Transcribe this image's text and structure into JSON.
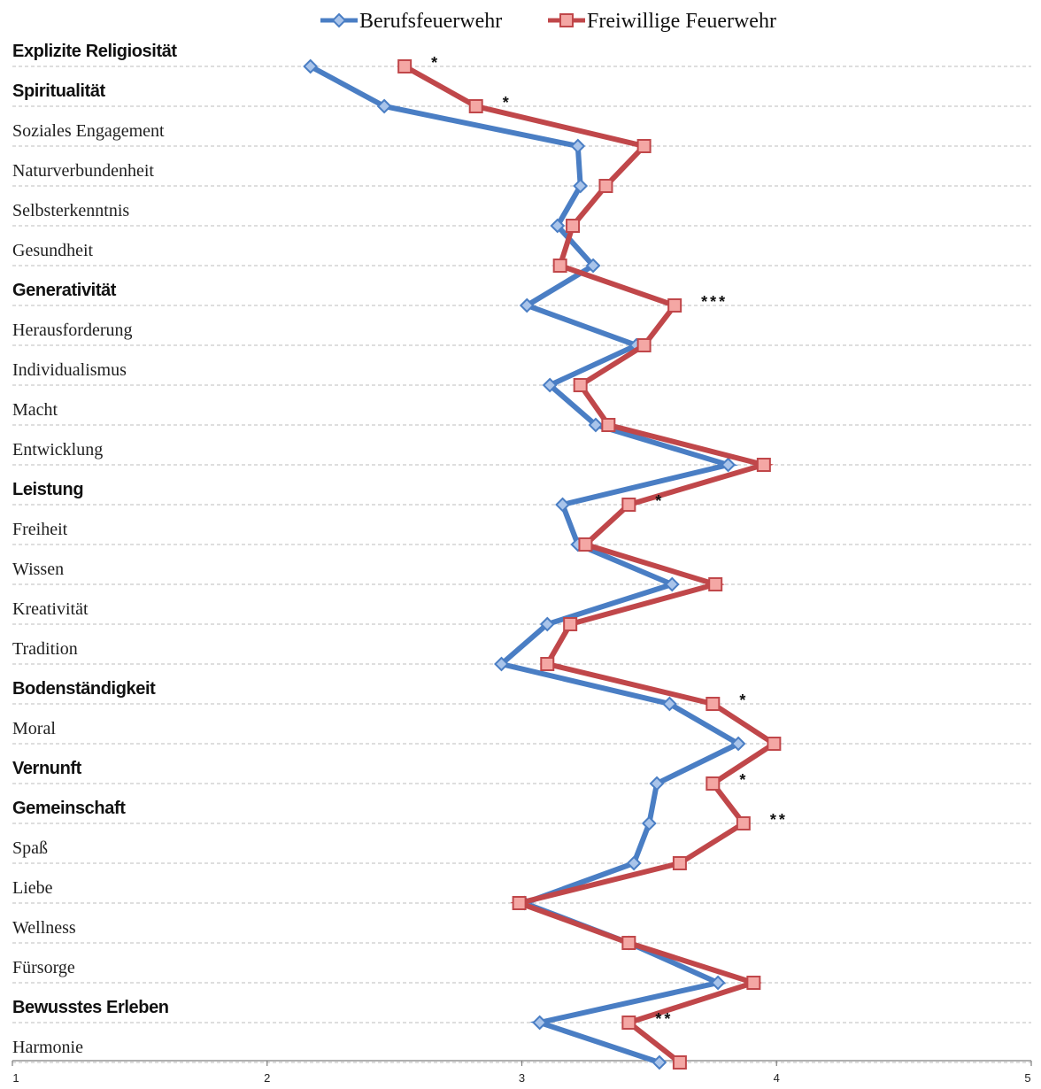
{
  "chart_data": {
    "type": "line",
    "orientation": "horizontal",
    "legend_position": "top",
    "xlim": [
      1,
      5
    ],
    "x_ticks": [
      "1",
      "2",
      "3",
      "4",
      "5"
    ],
    "gridlines": "dashed-horizontal",
    "categories": [
      {
        "label": "Explizite Religiosität",
        "style": "bold-sans"
      },
      {
        "label": "Spiritualität",
        "style": "bold-sans"
      },
      {
        "label": "Soziales Engagement",
        "style": "serif"
      },
      {
        "label": "Naturverbundenheit",
        "style": "serif"
      },
      {
        "label": "Selbsterkenntnis",
        "style": "serif"
      },
      {
        "label": "Gesundheit",
        "style": "serif"
      },
      {
        "label": "Generativität",
        "style": "bold-sans"
      },
      {
        "label": "Herausforderung",
        "style": "serif"
      },
      {
        "label": "Individualismus",
        "style": "serif"
      },
      {
        "label": "Macht",
        "style": "serif"
      },
      {
        "label": "Entwicklung",
        "style": "serif"
      },
      {
        "label": "Leistung",
        "style": "bold-sans"
      },
      {
        "label": "Freiheit",
        "style": "serif"
      },
      {
        "label": "Wissen",
        "style": "serif"
      },
      {
        "label": "Kreativität",
        "style": "serif"
      },
      {
        "label": "Tradition",
        "style": "serif"
      },
      {
        "label": "Bodenständigkeit",
        "style": "bold-sans"
      },
      {
        "label": "Moral",
        "style": "serif"
      },
      {
        "label": "Vernunft",
        "style": "bold-sans"
      },
      {
        "label": "Gemeinschaft",
        "style": "bold-sans"
      },
      {
        "label": "Spaß",
        "style": "serif"
      },
      {
        "label": "Liebe",
        "style": "serif"
      },
      {
        "label": "Wellness",
        "style": "serif"
      },
      {
        "label": "Fürsorge",
        "style": "serif"
      },
      {
        "label": "Bewusstes Erleben",
        "style": "bold-sans"
      },
      {
        "label": "Harmonie",
        "style": "serif"
      }
    ],
    "series": [
      {
        "name": "Berufsfeuerwehr",
        "color": "#4a7ec4",
        "marker": "diamond",
        "values": [
          2.17,
          2.46,
          3.22,
          3.23,
          3.14,
          3.28,
          3.02,
          3.45,
          3.11,
          3.29,
          3.81,
          3.16,
          3.22,
          3.59,
          3.1,
          2.92,
          3.58,
          3.85,
          3.53,
          3.5,
          3.44,
          3.01,
          3.42,
          3.77,
          3.07,
          3.54
        ]
      },
      {
        "name": "Freiwillige Feuerwehr",
        "color": "#c0474a",
        "marker": "square",
        "values": [
          2.54,
          2.82,
          3.48,
          3.33,
          3.2,
          3.15,
          3.6,
          3.48,
          3.23,
          3.34,
          3.95,
          3.42,
          3.25,
          3.76,
          3.19,
          3.1,
          3.75,
          3.99,
          3.75,
          3.87,
          3.62,
          2.99,
          3.42,
          3.91,
          3.42,
          3.62
        ]
      }
    ],
    "significance": [
      {
        "category": "Explizite Religiosität",
        "stars": "*"
      },
      {
        "category": "Spiritualität",
        "stars": "*"
      },
      {
        "category": "Generativität",
        "stars": "***"
      },
      {
        "category": "Leistung",
        "stars": "*"
      },
      {
        "category": "Bodenständigkeit",
        "stars": "*"
      },
      {
        "category": "Vernunft",
        "stars": "*"
      },
      {
        "category": "Gemeinschaft",
        "stars": "**"
      },
      {
        "category": "Bewusstes Erleben",
        "stars": "**"
      }
    ]
  }
}
